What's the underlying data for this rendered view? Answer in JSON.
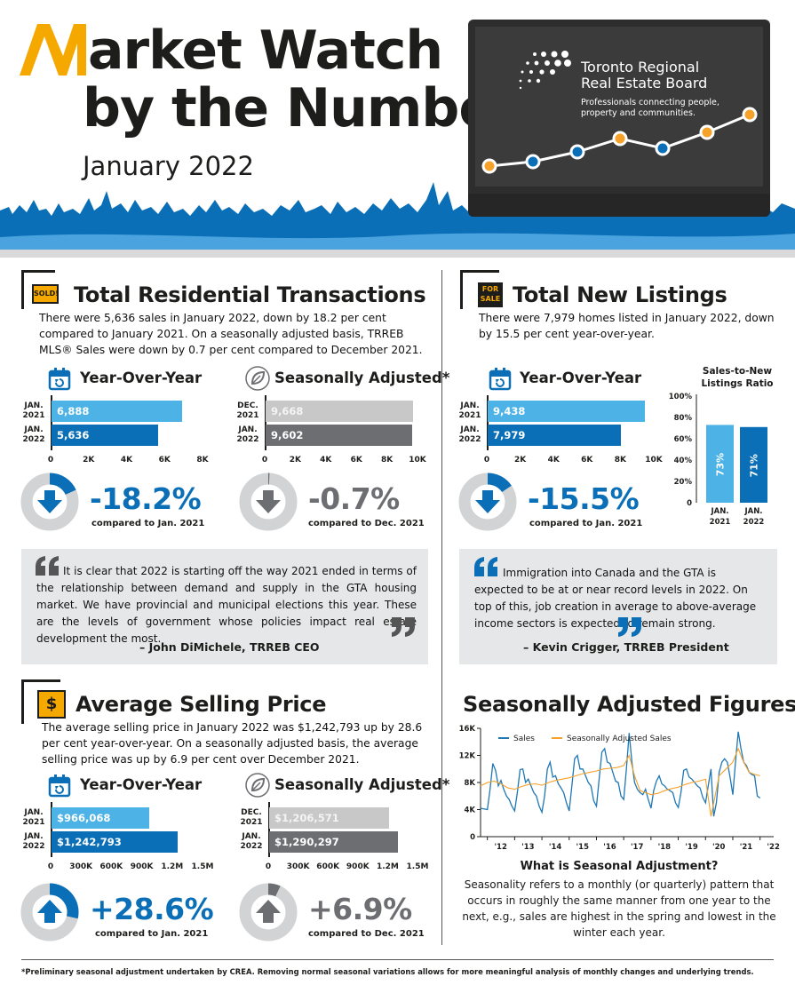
{
  "header": {
    "title_line1": "arket Watch",
    "title_line2": "by the Numbers",
    "date": "January 2022",
    "logo_line1": "Toronto Regional",
    "logo_line2": "Real Estate Board",
    "tagline": "Professionals connecting people, property and communities."
  },
  "colors": {
    "blue_light": "#4db3e6",
    "blue_dark": "#0a6fb6",
    "gray_light": "#c8c8c8",
    "gray_dark": "#6d6e71",
    "orange": "#f5a12a",
    "skyline": "#0a6fb6"
  },
  "transactions": {
    "title": "Total Residential Transactions",
    "sign": "SOLD!",
    "text": "There were 5,636 sales in January 2022, down by 18.2 per cent compared to January 2021. On a seasonally adjusted basis, TRREB MLS® Sales were down by 0.7 per cent compared to December 2021.",
    "yoy": {
      "heading": "Year-Over-Year",
      "rows": [
        {
          "label1": "JAN.",
          "label2": "2021",
          "value": 6888,
          "text": "6,888"
        },
        {
          "label1": "JAN.",
          "label2": "2022",
          "value": 5636,
          "text": "5,636"
        }
      ],
      "ticks": [
        "0",
        "2K",
        "4K",
        "6K",
        "8K"
      ],
      "max": 8000,
      "pct": "-18.2%",
      "compare": "compared to Jan. 2021",
      "fraction": 0.182
    },
    "sa": {
      "heading": "Seasonally Adjusted*",
      "rows": [
        {
          "label1": "DEC.",
          "label2": "2021",
          "value": 9668,
          "text": "9,668"
        },
        {
          "label1": "JAN.",
          "label2": "2022",
          "value": 9602,
          "text": "9,602"
        }
      ],
      "ticks": [
        "0",
        "2K",
        "4K",
        "6K",
        "8K",
        "10K"
      ],
      "max": 10000,
      "pct": "-0.7%",
      "compare": "compared to Dec. 2021",
      "fraction": 0.007
    }
  },
  "listings": {
    "title": "Total New Listings",
    "sign1": "FOR",
    "sign2": "SALE",
    "text": "There were 7,979 homes listed in January 2022, down by 15.5 per cent year-over-year.",
    "yoy": {
      "heading": "Year-Over-Year",
      "rows": [
        {
          "label1": "JAN.",
          "label2": "2021",
          "value": 9438,
          "text": "9,438"
        },
        {
          "label1": "JAN.",
          "label2": "2022",
          "value": 7979,
          "text": "7,979"
        }
      ],
      "ticks": [
        "0",
        "2K",
        "4K",
        "6K",
        "8K",
        "10K"
      ],
      "max": 10000,
      "pct": "-15.5%",
      "compare": "compared to Jan. 2021",
      "fraction": 0.155
    },
    "ratio": {
      "title_line1": "Sales-to-New",
      "title_line2": "Listings Ratio",
      "yticks": [
        "0",
        "20%",
        "40%",
        "60%",
        "80%",
        "100%"
      ],
      "bars": [
        {
          "label1": "JAN.",
          "label2": "2021",
          "value": 73,
          "text": "73%"
        },
        {
          "label1": "JAN.",
          "label2": "2022",
          "value": 71,
          "text": "71%"
        }
      ]
    }
  },
  "quotes": {
    "q1": {
      "text": "It is clear that 2022 is starting off the way 2021 ended in terms of the relationship between demand and supply in the GTA housing market. We have provincial and municipal elections this year. These are the levels of government whose policies impact real estate development the most.",
      "author": "– John DiMichele, TRREB CEO"
    },
    "q2": {
      "text": "Immigration into Canada and the GTA is expected to be at or near record levels in 2022. On top of this, job creation in average to above-average income sectors is expected to remain strong.",
      "author": "– Kevin Crigger, TRREB President"
    }
  },
  "price": {
    "title": "Average Selling Price",
    "sign": "$",
    "text": "The average selling price in January 2022 was $1,242,793 up by 28.6 per cent year-over-year. On a seasonally adjusted basis, the average selling price was up by 6.9 per cent over December 2021.",
    "yoy": {
      "heading": "Year-Over-Year",
      "rows": [
        {
          "label1": "JAN.",
          "label2": "2021",
          "value": 966068,
          "text": "$966,068"
        },
        {
          "label1": "JAN.",
          "label2": "2022",
          "value": 1242793,
          "text": "$1,242,793"
        }
      ],
      "ticks": [
        "0",
        "300K",
        "600K",
        "900K",
        "1.2M",
        "1.5M"
      ],
      "max": 1500000,
      "pct": "+28.6%",
      "compare": "compared to Jan. 2021",
      "fraction": 0.286
    },
    "sa": {
      "heading": "Seasonally Adjusted*",
      "rows": [
        {
          "label1": "DEC.",
          "label2": "2021",
          "value": 1206571,
          "text": "$1,206,571"
        },
        {
          "label1": "JAN.",
          "label2": "2022",
          "value": 1290297,
          "text": "$1,290,297"
        }
      ],
      "ticks": [
        "0",
        "300K",
        "600K",
        "900K",
        "1.2M",
        "1.5M"
      ],
      "max": 1500000,
      "pct": "+6.9%",
      "compare": "compared to Dec. 2021",
      "fraction": 0.069
    }
  },
  "seasonal": {
    "title": "Seasonally Adjusted Figures",
    "legend_sales": "Sales",
    "legend_sa": "Seasonally Adjusted Sales",
    "yticks": [
      "0",
      "4K",
      "8K",
      "12K",
      "16K"
    ],
    "xticks": [
      "'12",
      "'13",
      "'14",
      "'15",
      "'16",
      "'17",
      "'18",
      "'19",
      "'20",
      "'21",
      "'22"
    ],
    "what_title": "What is Seasonal Adjustment?",
    "what_text": "Seasonality refers to a monthly (or quarterly) pattern that occurs in roughly the same manner from one year to the next, e.g., sales are highest in the spring and lowest in the winter each year."
  },
  "footnote": "*Preliminary seasonal adjustment undertaken by CREA. Removing normal seasonal variations allows for more meaningful analysis of monthly changes and underlying trends.",
  "chart_data": [
    {
      "type": "bar",
      "title": "Total Residential Transactions – Year-Over-Year",
      "categories": [
        "JAN. 2021",
        "JAN. 2022"
      ],
      "values": [
        6888,
        5636
      ],
      "xlim": [
        0,
        8000
      ]
    },
    {
      "type": "bar",
      "title": "Total Residential Transactions – Seasonally Adjusted*",
      "categories": [
        "DEC. 2021",
        "JAN. 2022"
      ],
      "values": [
        9668,
        9602
      ],
      "xlim": [
        0,
        10000
      ]
    },
    {
      "type": "bar",
      "title": "Total New Listings – Year-Over-Year",
      "categories": [
        "JAN. 2021",
        "JAN. 2022"
      ],
      "values": [
        9438,
        7979
      ],
      "xlim": [
        0,
        10000
      ]
    },
    {
      "type": "bar",
      "title": "Sales-to-New Listings Ratio",
      "categories": [
        "JAN. 2021",
        "JAN. 2022"
      ],
      "values": [
        73,
        71
      ],
      "ylim": [
        0,
        100
      ]
    },
    {
      "type": "bar",
      "title": "Average Selling Price – Year-Over-Year",
      "categories": [
        "JAN. 2021",
        "JAN. 2022"
      ],
      "values": [
        966068,
        1242793
      ],
      "xlim": [
        0,
        1500000
      ]
    },
    {
      "type": "bar",
      "title": "Average Selling Price – Seasonally Adjusted*",
      "categories": [
        "DEC. 2021",
        "JAN. 2022"
      ],
      "values": [
        1206571,
        1290297
      ],
      "xlim": [
        0,
        1500000
      ]
    },
    {
      "type": "line",
      "title": "Seasonally Adjusted Figures",
      "ylim": [
        0,
        16000
      ],
      "xlim": [
        2011.75,
        2022.5
      ],
      "series": [
        {
          "name": "Sales",
          "color": "#1f78b4",
          "x": [
            2011.75,
            2012.0,
            2012.1,
            2012.2,
            2012.3,
            2012.4,
            2012.5,
            2012.6,
            2012.7,
            2012.8,
            2012.9,
            2013.0,
            2013.1,
            2013.2,
            2013.3,
            2013.4,
            2013.5,
            2013.6,
            2013.7,
            2013.8,
            2013.9,
            2014.0,
            2014.1,
            2014.2,
            2014.3,
            2014.4,
            2014.5,
            2014.6,
            2014.7,
            2014.8,
            2014.9,
            2015.0,
            2015.1,
            2015.2,
            2015.3,
            2015.4,
            2015.5,
            2015.6,
            2015.7,
            2015.8,
            2015.9,
            2016.0,
            2016.1,
            2016.2,
            2016.3,
            2016.4,
            2016.5,
            2016.6,
            2016.7,
            2016.8,
            2016.9,
            2017.0,
            2017.1,
            2017.2,
            2017.3,
            2017.4,
            2017.5,
            2017.6,
            2017.7,
            2017.8,
            2017.9,
            2018.0,
            2018.1,
            2018.2,
            2018.3,
            2018.4,
            2018.5,
            2018.6,
            2018.7,
            2018.8,
            2018.9,
            2019.0,
            2019.1,
            2019.2,
            2019.3,
            2019.4,
            2019.5,
            2019.6,
            2019.7,
            2019.8,
            2019.9,
            2020.0,
            2020.1,
            2020.2,
            2020.3,
            2020.4,
            2020.5,
            2020.6,
            2020.7,
            2020.8,
            2020.9,
            2021.0,
            2021.1,
            2021.2,
            2021.3,
            2021.4,
            2021.5,
            2021.6,
            2021.7,
            2021.8,
            2021.9,
            2022.0
          ],
          "y": [
            4200,
            4000,
            7000,
            10800,
            9800,
            7500,
            8300,
            7000,
            6000,
            5500,
            4500,
            3800,
            6500,
            9900,
            10000,
            8000,
            8500,
            7500,
            6500,
            6000,
            4500,
            3600,
            6000,
            10000,
            11000,
            8800,
            9000,
            7800,
            7200,
            6500,
            5000,
            3800,
            7500,
            11500,
            12000,
            10000,
            10000,
            9000,
            8000,
            7500,
            5300,
            4500,
            8500,
            12500,
            13000,
            11000,
            10800,
            9500,
            8200,
            8000,
            6000,
            5500,
            10000,
            15300,
            11000,
            8000,
            7000,
            6500,
            6200,
            7000,
            5500,
            4200,
            6800,
            8200,
            9000,
            7800,
            7500,
            7000,
            6800,
            6500,
            5000,
            4300,
            6500,
            9800,
            10000,
            8800,
            8500,
            8000,
            7500,
            7200,
            5800,
            5000,
            7500,
            10000,
            3000,
            5000,
            9500,
            11000,
            11500,
            11000,
            8800,
            6200,
            11000,
            15500,
            13000,
            11000,
            10500,
            9500,
            9200,
            9000,
            6000,
            5700
          ]
        },
        {
          "name": "Seasonally Adjusted Sales",
          "color": "#f5a12a",
          "x": [
            2011.75,
            2012.0,
            2012.25,
            2012.5,
            2012.75,
            2013.0,
            2013.25,
            2013.5,
            2013.75,
            2014.0,
            2014.25,
            2014.5,
            2014.75,
            2015.0,
            2015.25,
            2015.5,
            2015.75,
            2016.0,
            2016.25,
            2016.5,
            2016.75,
            2017.0,
            2017.2,
            2017.4,
            2017.6,
            2017.8,
            2018.0,
            2018.25,
            2018.5,
            2018.75,
            2019.0,
            2019.25,
            2019.5,
            2019.75,
            2020.0,
            2020.2,
            2020.3,
            2020.5,
            2020.75,
            2021.0,
            2021.2,
            2021.4,
            2021.6,
            2021.8,
            2022.0
          ],
          "y": [
            7500,
            8000,
            8200,
            7800,
            7200,
            7000,
            7400,
            7700,
            7800,
            7600,
            8000,
            8300,
            8500,
            8700,
            9000,
            9300,
            9500,
            9700,
            10000,
            10100,
            10200,
            10500,
            12000,
            9000,
            6800,
            6500,
            6200,
            6400,
            6800,
            7100,
            7300,
            7700,
            8000,
            8200,
            8500,
            3000,
            5000,
            9000,
            10000,
            11000,
            13000,
            11000,
            9500,
            9200,
            9000
          ]
        }
      ],
      "xticks": [
        "'12",
        "'13",
        "'14",
        "'15",
        "'16",
        "'17",
        "'18",
        "'19",
        "'20",
        "'21",
        "'22"
      ],
      "yticks": [
        "0",
        "4K",
        "8K",
        "12K",
        "16K"
      ]
    }
  ]
}
